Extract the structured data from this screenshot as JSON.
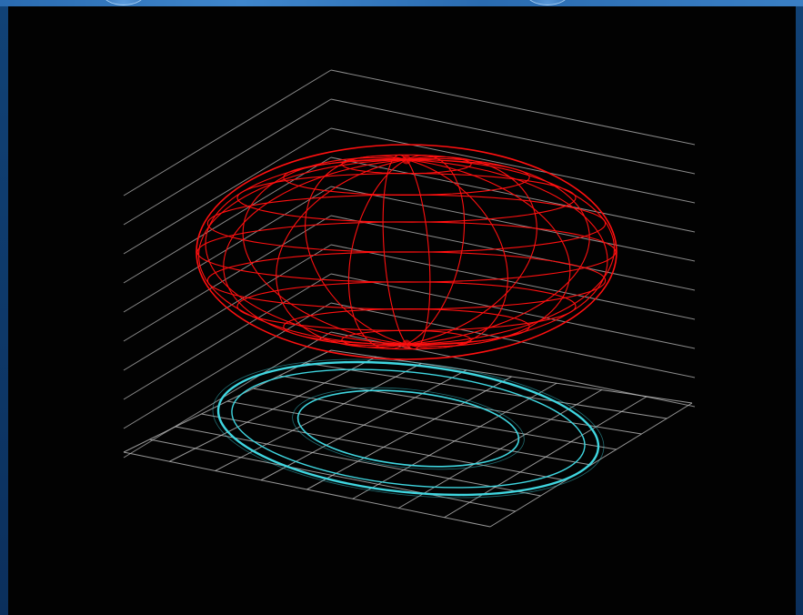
{
  "window": {
    "frame_color": "#0d3566",
    "titlebar_color": "#2a6bb0"
  },
  "scene": {
    "background": "#020202",
    "wall_grid": {
      "color": "#c8c8c8",
      "line_count": 10
    },
    "floor_grid": {
      "color": "#c8c8c8",
      "divisions": 8
    },
    "spheroid": {
      "color": "#ff1010",
      "style": "wireframe",
      "meridians": 16,
      "parallels": 10
    },
    "rings": {
      "color": "#3fd6e0",
      "count": 3
    }
  }
}
